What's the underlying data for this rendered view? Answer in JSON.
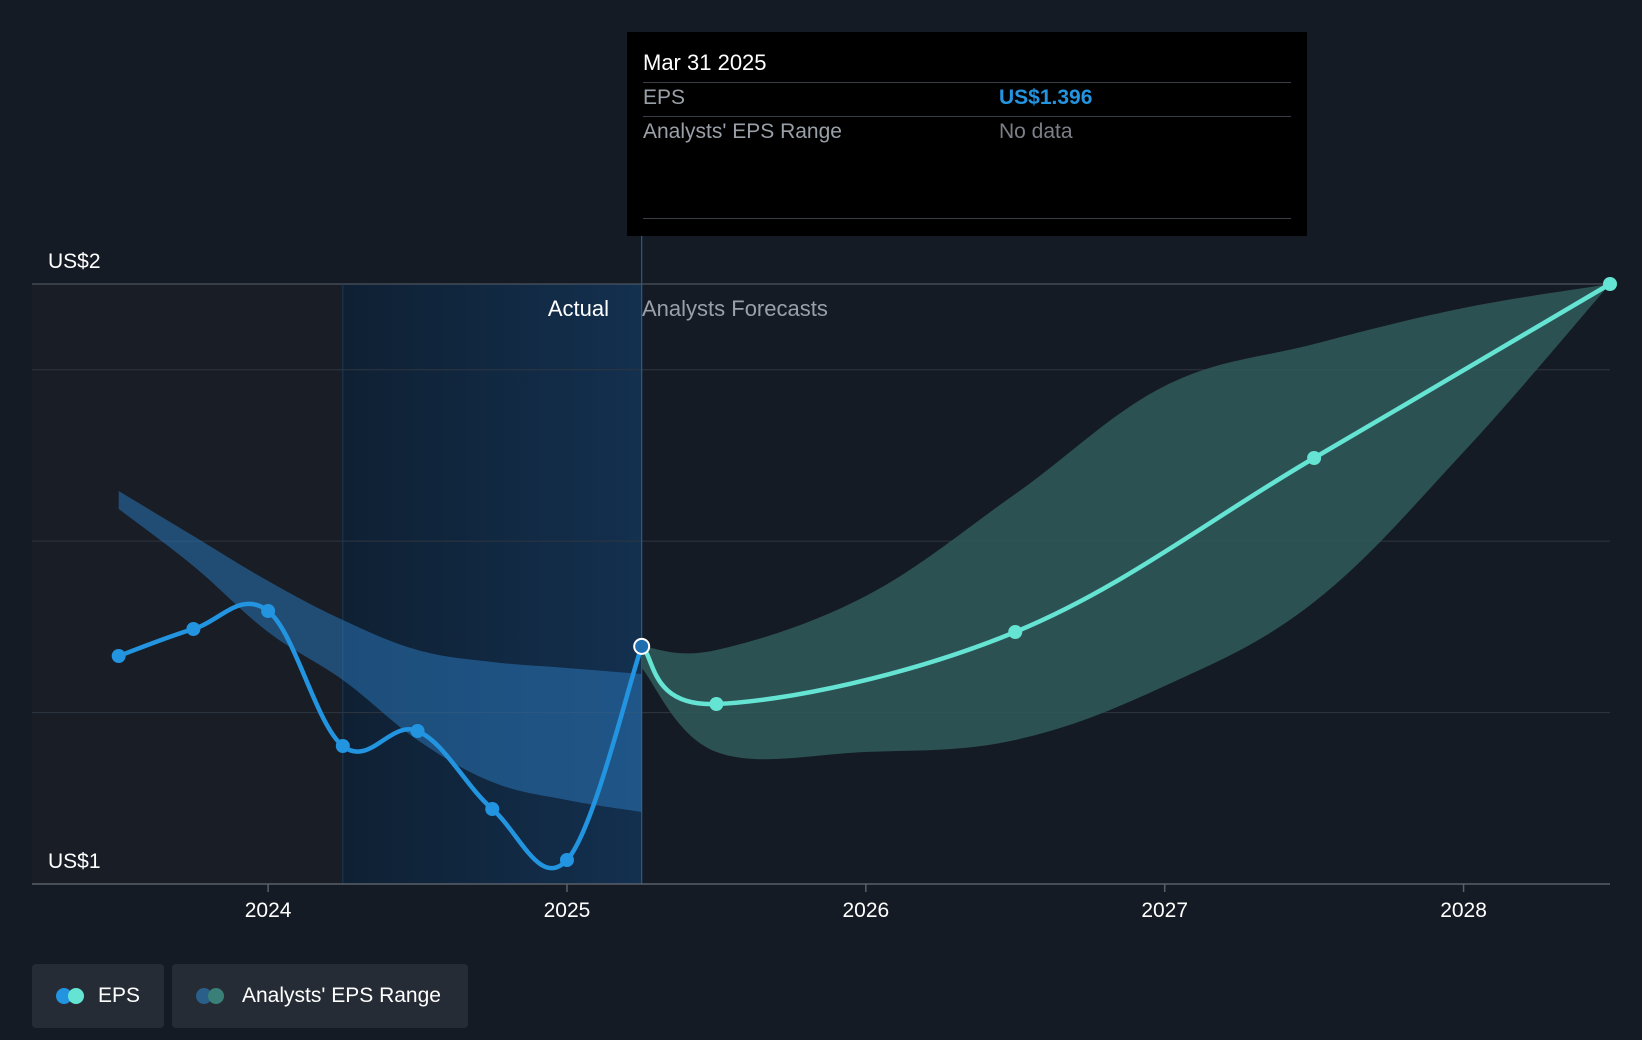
{
  "colors": {
    "background": "#151b24",
    "actual_line": "#2394df",
    "forecast_line": "#65e4d3",
    "actual_band": "#2a74b6",
    "forecast_band": "#2f5a5a",
    "highlight_region": "#123252",
    "grid": "#2f3640"
  },
  "tooltip": {
    "date": "Mar 31 2025",
    "eps_label": "EPS",
    "eps_value": "US$1.396",
    "range_label": "Analysts' EPS Range",
    "range_value": "No data"
  },
  "labels": {
    "actual": "Actual",
    "forecasts": "Analysts Forecasts"
  },
  "legend": {
    "eps": "EPS",
    "range": "Analysts' EPS Range"
  },
  "chart_data": {
    "type": "line",
    "title": "",
    "xlabel": "",
    "ylabel": "",
    "y_tick_labels": [
      "US$2",
      "US$1"
    ],
    "x_tick_labels": [
      "2024",
      "2025",
      "2026",
      "2027",
      "2028"
    ],
    "xlim": [
      2023.21,
      2028.49
    ],
    "ylim": [
      1.0,
      2.0
    ],
    "grid": true,
    "highlight_start": 2024.25,
    "divider_date": 2025.25,
    "series": [
      {
        "name": "EPS",
        "kind": "actual",
        "points": [
          {
            "x": 2023.5,
            "y": 1.38
          },
          {
            "x": 2023.75,
            "y": 1.425
          },
          {
            "x": 2024.0,
            "y": 1.455
          },
          {
            "x": 2024.25,
            "y": 1.23
          },
          {
            "x": 2024.5,
            "y": 1.255
          },
          {
            "x": 2024.75,
            "y": 1.125
          },
          {
            "x": 2025.0,
            "y": 1.04
          },
          {
            "x": 2025.25,
            "y": 1.396
          }
        ]
      },
      {
        "name": "EPS",
        "kind": "forecast",
        "points": [
          {
            "x": 2025.25,
            "y": 1.396
          },
          {
            "x": 2025.5,
            "y": 1.3
          },
          {
            "x": 2026.5,
            "y": 1.42
          },
          {
            "x": 2027.5,
            "y": 1.71
          },
          {
            "x": 2028.49,
            "y": 2.0
          }
        ]
      }
    ],
    "bands": [
      {
        "name": "Analysts' EPS Range",
        "kind": "actual",
        "upper": [
          [
            2023.5,
            1.655
          ],
          [
            2023.75,
            1.58
          ],
          [
            2024.0,
            1.505
          ],
          [
            2024.25,
            1.44
          ],
          [
            2024.5,
            1.39
          ],
          [
            2024.75,
            1.37
          ],
          [
            2025.0,
            1.36
          ],
          [
            2025.25,
            1.35
          ]
        ],
        "lower": [
          [
            2023.5,
            1.625
          ],
          [
            2023.75,
            1.53
          ],
          [
            2024.0,
            1.42
          ],
          [
            2024.25,
            1.34
          ],
          [
            2024.5,
            1.24
          ],
          [
            2024.75,
            1.17
          ],
          [
            2025.0,
            1.14
          ],
          [
            2025.25,
            1.12
          ]
        ]
      },
      {
        "name": "Analysts' EPS Range",
        "kind": "forecast",
        "upper": [
          [
            2025.25,
            1.396
          ],
          [
            2025.5,
            1.39
          ],
          [
            2026.0,
            1.48
          ],
          [
            2026.5,
            1.65
          ],
          [
            2027.0,
            1.83
          ],
          [
            2027.5,
            1.9
          ],
          [
            2028.0,
            1.96
          ],
          [
            2028.49,
            2.0
          ]
        ],
        "lower": [
          [
            2025.25,
            1.36
          ],
          [
            2025.5,
            1.22
          ],
          [
            2026.0,
            1.22
          ],
          [
            2026.5,
            1.24
          ],
          [
            2027.0,
            1.33
          ],
          [
            2027.5,
            1.47
          ],
          [
            2028.0,
            1.72
          ],
          [
            2028.49,
            2.0
          ]
        ]
      }
    ]
  }
}
